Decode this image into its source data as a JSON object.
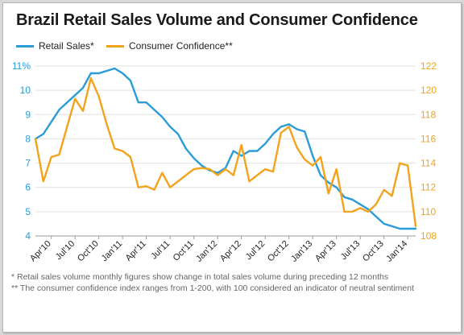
{
  "chart_data": {
    "type": "line",
    "title": "Brazil Retail Sales Volume and Consumer Confidence",
    "x": [
      "Feb'10",
      "Mar'10",
      "Apr'10",
      "May'10",
      "Jun'10",
      "Jul'10",
      "Aug'10",
      "Sep'10",
      "Oct'10",
      "Nov'10",
      "Dec'10",
      "Jan'11",
      "Feb'11",
      "Mar'11",
      "Apr'11",
      "May'11",
      "Jun'11",
      "Jul'11",
      "Aug'11",
      "Sep'11",
      "Oct'11",
      "Nov'11",
      "Dec'11",
      "Jan'12",
      "Feb'12",
      "Mar'12",
      "Apr'12",
      "May'12",
      "Jun'12",
      "Jul'12",
      "Aug'12",
      "Sep'12",
      "Oct'12",
      "Nov'12",
      "Dec'12",
      "Jan'13",
      "Feb'13",
      "Mar'13",
      "Apr'13",
      "May'13",
      "Jun'13",
      "Jul'13",
      "Aug'13",
      "Sep'13",
      "Oct'13",
      "Nov'13",
      "Dec'13",
      "Jan'14",
      "Feb'14"
    ],
    "xtick_labels": [
      "Apr'10",
      "Jul'10",
      "Oct'10",
      "Jan'11",
      "Apr'11",
      "Jul'11",
      "Oct'11",
      "Jan'12",
      "Apr'12",
      "Jul'12",
      "Oct'12",
      "Jan'13",
      "Apr'13",
      "Jul'13",
      "Oct'13",
      "Jan'14"
    ],
    "y_left": {
      "ticks": [
        "4",
        "5",
        "6",
        "7",
        "8",
        "9",
        "10",
        "11%"
      ],
      "range": [
        4,
        11
      ]
    },
    "y_right": {
      "ticks": [
        "108",
        "110",
        "112",
        "114",
        "116",
        "118",
        "120",
        "122"
      ],
      "range": [
        108,
        122
      ]
    },
    "series": [
      {
        "name": "Retail Sales*",
        "axis": "left",
        "color": "#2b9cd8",
        "values": [
          8.0,
          8.2,
          8.7,
          9.2,
          9.5,
          9.8,
          10.1,
          10.7,
          10.7,
          10.8,
          10.9,
          10.7,
          10.4,
          9.5,
          9.5,
          9.2,
          8.9,
          8.5,
          8.2,
          7.6,
          7.2,
          6.9,
          6.7,
          6.6,
          6.8,
          7.5,
          7.3,
          7.5,
          7.5,
          7.8,
          8.2,
          8.5,
          8.6,
          8.4,
          8.3,
          7.3,
          6.5,
          6.2,
          6.0,
          5.6,
          5.5,
          5.3,
          5.1,
          4.8,
          4.5,
          4.4,
          4.3,
          4.3,
          4.3
        ]
      },
      {
        "name": "Consumer Confidence**",
        "axis": "right",
        "color": "#f2a31b",
        "values": [
          116.0,
          112.5,
          114.5,
          114.7,
          117.0,
          119.3,
          118.3,
          121.0,
          119.5,
          117.2,
          115.2,
          115.0,
          114.5,
          112.0,
          112.1,
          111.8,
          113.2,
          112.0,
          112.5,
          113.0,
          113.5,
          113.6,
          113.5,
          113.0,
          113.5,
          113.0,
          115.5,
          112.5,
          113.0,
          113.5,
          113.3,
          116.5,
          117.0,
          115.3,
          114.3,
          113.8,
          114.5,
          111.5,
          113.5,
          110.0,
          110.0,
          110.3,
          110.0,
          110.6,
          111.8,
          111.3,
          114.0,
          113.8,
          108.8
        ]
      }
    ],
    "legend_position": "top-left",
    "grid": "horizontal"
  },
  "footnotes": {
    "retail": "* Retail sales volume monthly figures show change in total sales volume during preceding 12 months",
    "confidence": "** The consumer confidence index ranges from 1-200, with 100 considered an indicator of neutral sentiment"
  }
}
